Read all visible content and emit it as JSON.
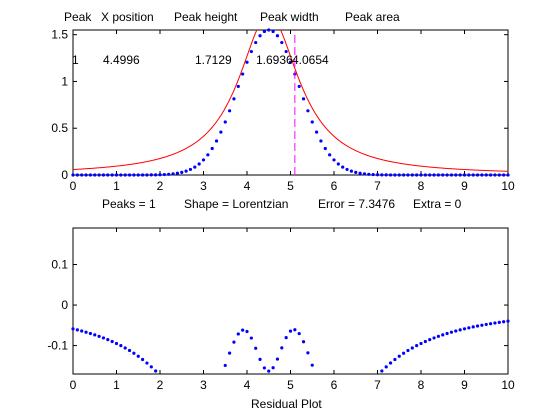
{
  "colors": {
    "data_points": "#0000ff",
    "fit_line": "#ff0000",
    "peak_marker": "#ff00ff",
    "axes": "#000000",
    "background": "#ffffff"
  },
  "top": {
    "table_header": {
      "peak": "Peak",
      "x_position": "X position",
      "peak_height": "Peak height",
      "peak_width": "Peak width",
      "peak_area": "Peak area"
    },
    "table_row": {
      "peak": "1",
      "x_position": "4.4996",
      "peak_height": "1.7129",
      "peak_width": "1.6936",
      "peak_area": "4.0654"
    },
    "status": {
      "peaks": "Peaks = 1",
      "shape": "Shape = Lorentzian",
      "error": "Error = 7.3476",
      "extra": "Extra = 0"
    }
  },
  "bottom": {
    "xlabel": "Residual Plot"
  },
  "chart_data": [
    {
      "type": "scatter",
      "subtype": "peak-fit",
      "xlim": [
        0,
        10
      ],
      "ylim": [
        0,
        1.55
      ],
      "xticks": [
        "0",
        "1",
        "2",
        "3",
        "4",
        "5",
        "6",
        "7",
        "8",
        "9",
        "10"
      ],
      "yticks": [
        {
          "value": 0,
          "label": "0"
        },
        {
          "value": 0.5,
          "label": "0.5"
        },
        {
          "value": 1,
          "label": "1"
        },
        {
          "value": 1.5,
          "label": "1.5"
        }
      ],
      "grid": false,
      "series": [
        {
          "kind": "points",
          "x_start": 0,
          "x_step": 0.1,
          "count": 101,
          "shape": "gaussian",
          "center": 4.5,
          "height": 1.55,
          "width": 1.66
        },
        {
          "kind": "line",
          "shape": "lorentzian",
          "center": 4.4996,
          "height": 1.7129,
          "width": 1.6936,
          "x_step": 0.02
        }
      ],
      "peak_marker": {
        "x": 5.1,
        "ymin": 0,
        "ymax": 1.55,
        "style": "dashed"
      }
    },
    {
      "type": "scatter",
      "subtype": "residual",
      "xlim": [
        0,
        10
      ],
      "ylim": [
        -0.17,
        0.19
      ],
      "xticks": [
        "0",
        "1",
        "2",
        "3",
        "4",
        "5",
        "6",
        "7",
        "8",
        "9",
        "10"
      ],
      "yticks": [
        {
          "value": -0.1,
          "label": "-0.1"
        },
        {
          "value": 0,
          "label": "0"
        },
        {
          "value": 0.1,
          "label": "0.1"
        }
      ],
      "grid": false,
      "series": [
        {
          "kind": "points",
          "definition": "points minus line of chart 1",
          "x_start": 0,
          "x_step": 0.1,
          "count": 101
        }
      ]
    }
  ]
}
